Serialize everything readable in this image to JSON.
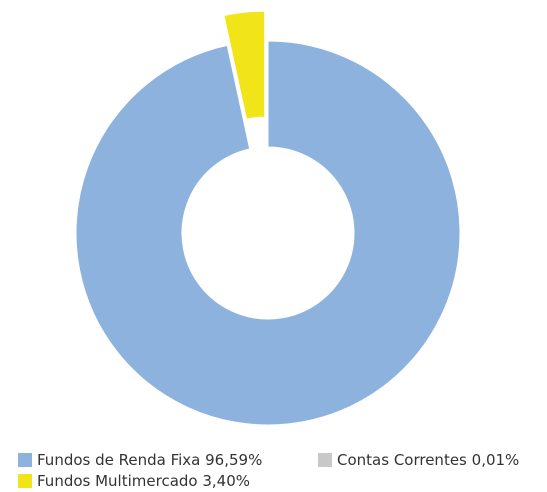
{
  "chart_data": {
    "type": "donut",
    "categories": [
      "Fundos de Renda Fixa",
      "Fundos Multimercado",
      "Contas Correntes"
    ],
    "values": [
      96.59,
      3.4,
      0.01
    ],
    "value_labels": [
      "96,59%",
      "3,40%",
      "0,01%"
    ],
    "colors": [
      "#8eb2de",
      "#f1e51a",
      "#c8c8c8"
    ],
    "legend": "bottom"
  }
}
